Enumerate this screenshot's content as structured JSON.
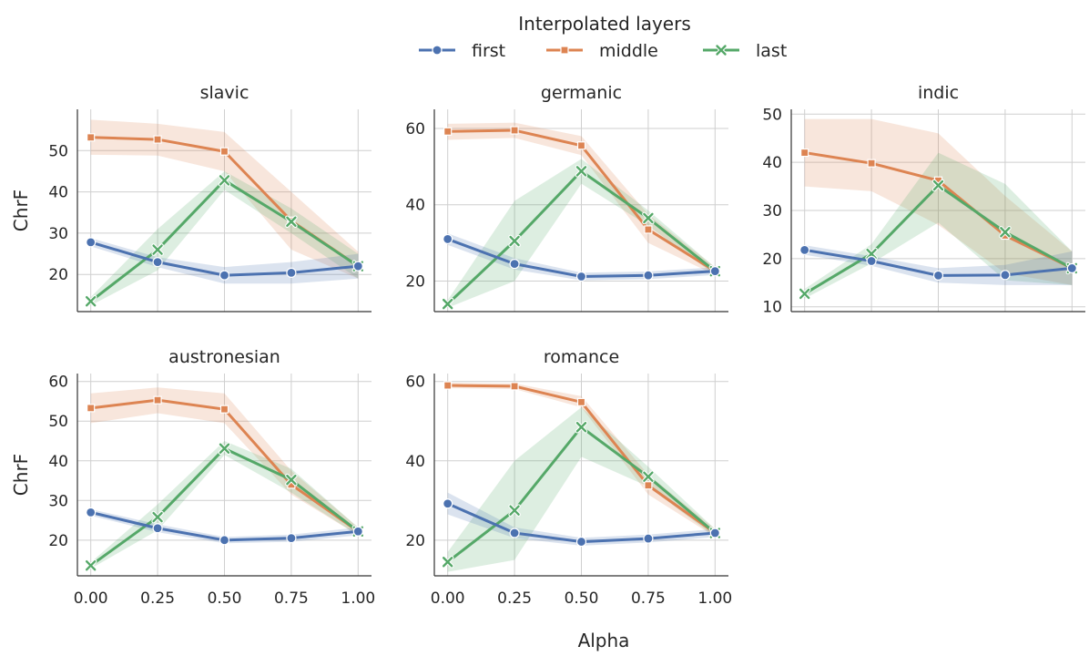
{
  "legend": {
    "title": "Interpolated layers",
    "placement": "top-center",
    "entries": [
      {
        "name": "first",
        "color": "#4c72b0",
        "marker": "circle"
      },
      {
        "name": "middle",
        "color": "#dd8452",
        "marker": "square"
      },
      {
        "name": "last",
        "color": "#55a868",
        "marker": "x"
      }
    ]
  },
  "chart_data": [
    {
      "type": "line",
      "title": "slavic",
      "xlabel": "",
      "ylabel": "ChrF",
      "x": [
        0.0,
        0.25,
        0.5,
        0.75,
        1.0
      ],
      "x_ticks": [
        "0.00",
        "0.25",
        "0.50",
        "0.75",
        "1.00"
      ],
      "show_x_ticks": false,
      "ylim": [
        11,
        60
      ],
      "y_ticks": [
        20,
        30,
        40,
        50
      ],
      "grid": true,
      "series": [
        {
          "name": "first",
          "values": [
            27.8,
            23.0,
            19.8,
            20.4,
            22.0
          ],
          "ci_low": [
            26.8,
            21.8,
            17.8,
            17.8,
            19.0
          ],
          "ci_high": [
            28.8,
            24.2,
            21.8,
            23.0,
            25.0
          ]
        },
        {
          "name": "middle",
          "values": [
            53.2,
            52.7,
            49.8,
            33.0,
            22.0
          ],
          "ci_low": [
            49.0,
            48.8,
            45.0,
            26.0,
            19.0
          ],
          "ci_high": [
            57.5,
            56.5,
            54.5,
            40.0,
            25.5
          ]
        },
        {
          "name": "last",
          "values": [
            13.5,
            26.0,
            42.8,
            32.8,
            22.0
          ],
          "ci_low": [
            12.5,
            21.0,
            40.5,
            30.0,
            19.0
          ],
          "ci_high": [
            14.5,
            31.0,
            45.0,
            36.0,
            25.0
          ]
        }
      ]
    },
    {
      "type": "line",
      "title": "germanic",
      "xlabel": "",
      "ylabel": "",
      "x": [
        0.0,
        0.25,
        0.5,
        0.75,
        1.0
      ],
      "x_ticks": [
        "0.00",
        "0.25",
        "0.50",
        "0.75",
        "1.00"
      ],
      "show_x_ticks": false,
      "ylim": [
        12,
        65
      ],
      "y_ticks": [
        20,
        40,
        60
      ],
      "grid": true,
      "series": [
        {
          "name": "first",
          "values": [
            31.0,
            24.5,
            21.2,
            21.5,
            22.6
          ],
          "ci_low": [
            29.5,
            23.0,
            20.2,
            20.5,
            21.6
          ],
          "ci_high": [
            32.5,
            26.0,
            22.2,
            22.5,
            23.6
          ]
        },
        {
          "name": "middle",
          "values": [
            59.2,
            59.5,
            55.5,
            33.5,
            22.6
          ],
          "ci_low": [
            57.0,
            57.5,
            53.0,
            30.0,
            21.6
          ],
          "ci_high": [
            61.2,
            61.5,
            58.0,
            37.5,
            23.6
          ]
        },
        {
          "name": "last",
          "values": [
            14.0,
            30.5,
            48.8,
            36.5,
            22.6
          ],
          "ci_low": [
            13.0,
            20.0,
            45.5,
            34.5,
            21.6
          ],
          "ci_high": [
            15.0,
            41.0,
            52.0,
            38.5,
            23.6
          ]
        }
      ]
    },
    {
      "type": "line",
      "title": "indic",
      "xlabel": "",
      "ylabel": "",
      "x": [
        0.0,
        0.25,
        0.5,
        0.75,
        1.0
      ],
      "x_ticks": [
        "0.00",
        "0.25",
        "0.50",
        "0.75",
        "1.00"
      ],
      "show_x_ticks": false,
      "ylim": [
        9,
        51
      ],
      "y_ticks": [
        10,
        20,
        30,
        40,
        50
      ],
      "grid": true,
      "series": [
        {
          "name": "first",
          "values": [
            21.8,
            19.5,
            16.5,
            16.6,
            18.0
          ],
          "ci_low": [
            20.8,
            18.5,
            15.0,
            14.5,
            14.5
          ],
          "ci_high": [
            22.8,
            20.5,
            18.0,
            18.7,
            21.5
          ]
        },
        {
          "name": "middle",
          "values": [
            42.0,
            39.8,
            36.2,
            24.8,
            18.0
          ],
          "ci_low": [
            35.0,
            34.0,
            27.0,
            17.0,
            14.5
          ],
          "ci_high": [
            49.0,
            49.0,
            46.0,
            33.0,
            21.5
          ]
        },
        {
          "name": "last",
          "values": [
            12.7,
            21.0,
            35.2,
            25.5,
            18.0
          ],
          "ci_low": [
            11.7,
            19.0,
            27.5,
            15.5,
            14.5
          ],
          "ci_high": [
            13.7,
            23.0,
            42.0,
            35.5,
            21.5
          ]
        }
      ]
    },
    {
      "type": "line",
      "title": "austronesian",
      "xlabel": "",
      "ylabel": "ChrF",
      "x": [
        0.0,
        0.25,
        0.5,
        0.75,
        1.0
      ],
      "x_ticks": [
        "0.00",
        "0.25",
        "0.50",
        "0.75",
        "1.00"
      ],
      "show_x_ticks": true,
      "ylim": [
        11,
        62
      ],
      "y_ticks": [
        20,
        30,
        40,
        50,
        60
      ],
      "grid": true,
      "series": [
        {
          "name": "first",
          "values": [
            27.0,
            23.0,
            20.0,
            20.5,
            22.2
          ],
          "ci_low": [
            26.2,
            22.0,
            19.2,
            19.6,
            21.2
          ],
          "ci_high": [
            27.8,
            24.0,
            20.8,
            21.4,
            23.2
          ]
        },
        {
          "name": "middle",
          "values": [
            53.3,
            55.3,
            53.0,
            34.0,
            22.2
          ],
          "ci_low": [
            49.5,
            52.0,
            49.5,
            31.5,
            21.2
          ],
          "ci_high": [
            57.0,
            58.5,
            57.0,
            37.5,
            23.2
          ]
        },
        {
          "name": "last",
          "values": [
            13.6,
            25.8,
            43.1,
            35.2,
            22.2
          ],
          "ci_low": [
            12.8,
            22.5,
            41.5,
            32.0,
            21.2
          ],
          "ci_high": [
            14.4,
            29.0,
            45.0,
            38.0,
            23.2
          ]
        }
      ]
    },
    {
      "type": "line",
      "title": "romance",
      "xlabel": "",
      "ylabel": "",
      "x": [
        0.0,
        0.25,
        0.5,
        0.75,
        1.0
      ],
      "x_ticks": [
        "0.00",
        "0.25",
        "0.50",
        "0.75",
        "1.00"
      ],
      "show_x_ticks": true,
      "ylim": [
        11,
        62
      ],
      "y_ticks": [
        20,
        40,
        60
      ],
      "grid": true,
      "series": [
        {
          "name": "first",
          "values": [
            29.2,
            21.8,
            19.6,
            20.4,
            21.8
          ],
          "ci_low": [
            26.5,
            20.5,
            18.6,
            19.4,
            20.8
          ],
          "ci_high": [
            32.0,
            23.2,
            20.6,
            21.4,
            22.8
          ]
        },
        {
          "name": "middle",
          "values": [
            59.0,
            58.8,
            54.8,
            33.8,
            21.8
          ],
          "ci_low": [
            58.3,
            58.1,
            53.5,
            31.5,
            20.8
          ],
          "ci_high": [
            59.7,
            59.5,
            56.3,
            36.5,
            22.8
          ]
        },
        {
          "name": "last",
          "values": [
            14.5,
            27.5,
            48.5,
            36.0,
            21.8
          ],
          "ci_low": [
            12.0,
            15.0,
            41.0,
            33.5,
            20.8
          ],
          "ci_high": [
            17.0,
            40.0,
            53.5,
            38.5,
            22.8
          ]
        }
      ]
    }
  ],
  "figure": {
    "xlabel": "Alpha"
  }
}
